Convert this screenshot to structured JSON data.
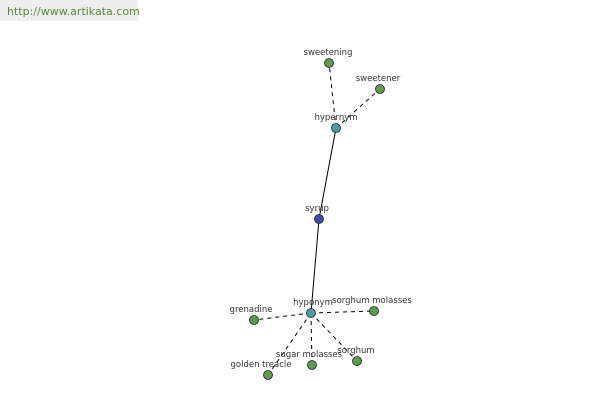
{
  "header": {
    "url": "http://www.artikata.com"
  },
  "nodes": [
    {
      "label": "sweetening"
    },
    {
      "label": "sweetener"
    },
    {
      "label": "hypernym"
    },
    {
      "label": "syrup"
    },
    {
      "label": "hyponym"
    },
    {
      "label": "grenadine"
    },
    {
      "label": "sorghum molasses"
    },
    {
      "label": "golden treacle"
    },
    {
      "label": "sugar molasses"
    },
    {
      "label": "sorghum"
    }
  ]
}
